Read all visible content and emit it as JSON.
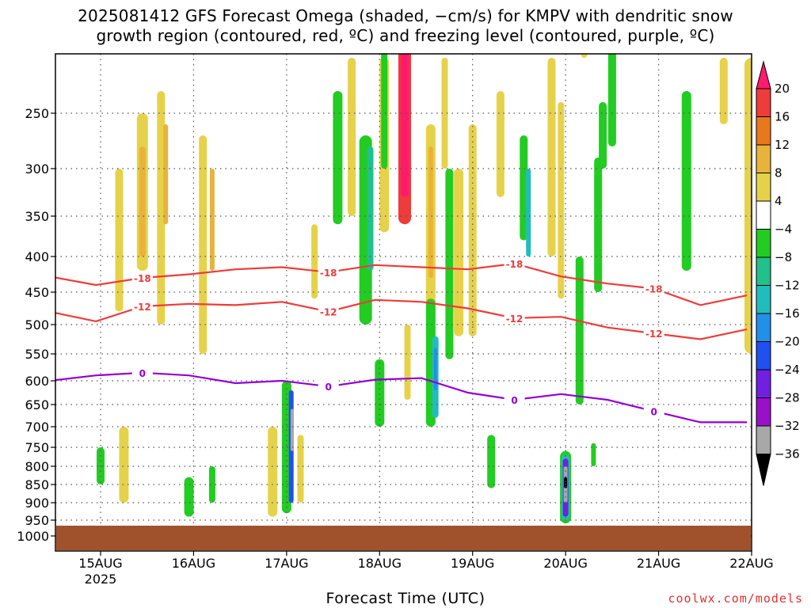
{
  "title_line1": "2025081412 GFS Forecast Omega (shaded, −cm/s) for KMPV with dendritic snow",
  "title_line2": "growth region (contoured, red, ºC) and freezing level (contoured, purple, ºC)",
  "xlabel": "Forecast Time (UTC)",
  "credit": "coolwx.com/models",
  "colors": {
    "ground": "#a0522d",
    "dgz_contour": "#ee3b3b",
    "freezing_contour": "#9400d3",
    "gridline": "#555555"
  },
  "colorbar": {
    "labels": [
      "20",
      "16",
      "12",
      "8",
      "4",
      "−4",
      "−8",
      "−12",
      "−16",
      "−20",
      "−24",
      "−28",
      "−32",
      "−36"
    ],
    "colors": [
      "#ff1a6e",
      "#ee3b3b",
      "#e8781e",
      "#e8b33a",
      "#e6d24a",
      "#ffffff",
      "#22cc22",
      "#22c08a",
      "#22bcbc",
      "#2090e8",
      "#2050f0",
      "#7020e0",
      "#9a10c8",
      "#a8a8a8",
      "#000000"
    ]
  },
  "chart_data": {
    "type": "heatmap",
    "title": "2025081412 GFS Forecast Omega (shaded, −cm/s) for KMPV with dendritic snow growth region (contoured, red, ºC) and freezing level (contoured, purple, ºC)",
    "xlabel": "Forecast Time (UTC)",
    "ylabel": "",
    "x_tick_labels": [
      "15AUG",
      "16AUG",
      "17AUG",
      "18AUG",
      "19AUG",
      "20AUG",
      "21AUG",
      "22AUG"
    ],
    "x_sub_label": "2025",
    "y_tick_labels": [
      "250",
      "300",
      "350",
      "400",
      "450",
      "500",
      "550",
      "600",
      "650",
      "700",
      "750",
      "800",
      "850",
      "900",
      "950",
      "1000"
    ],
    "y_axis": "pressure (hPa), inverted",
    "grid": true,
    "series": [
      {
        "name": "-18",
        "color": "#ee3b3b",
        "x": [
          0.0,
          0.5,
          1.0,
          1.5,
          2.0,
          2.5,
          3.0,
          3.5,
          4.0,
          4.5,
          5.0,
          5.5,
          6.0,
          6.5,
          7.0,
          7.5
        ],
        "y": [
          428,
          440,
          430,
          425,
          418,
          415,
          422,
          412,
          415,
          418,
          410,
          428,
          438,
          445,
          470,
          455
        ]
      },
      {
        "name": "-12",
        "color": "#ee3b3b",
        "x": [
          0.0,
          0.5,
          1.0,
          1.5,
          2.0,
          2.5,
          3.0,
          3.5,
          4.0,
          4.5,
          5.0,
          5.5,
          6.0,
          6.5,
          7.0,
          7.5
        ],
        "y": [
          480,
          495,
          472,
          468,
          470,
          465,
          480,
          462,
          465,
          475,
          490,
          488,
          505,
          515,
          525,
          508
        ]
      },
      {
        "name": "0",
        "color": "#9400d3",
        "x": [
          0.0,
          0.5,
          1.0,
          1.5,
          2.0,
          2.5,
          3.0,
          3.5,
          4.0,
          4.5,
          5.0,
          5.5,
          6.0,
          6.5,
          7.0,
          7.5
        ],
        "y": [
          600,
          590,
          585,
          590,
          605,
          600,
          612,
          598,
          595,
          625,
          640,
          628,
          640,
          665,
          690,
          690
        ]
      }
    ],
    "colorbar_ticks": [
      20,
      16,
      12,
      8,
      4,
      -4,
      -8,
      -12,
      -16,
      -20,
      -24,
      -28,
      -32,
      -36
    ],
    "colorbar_units": "−cm/s"
  }
}
